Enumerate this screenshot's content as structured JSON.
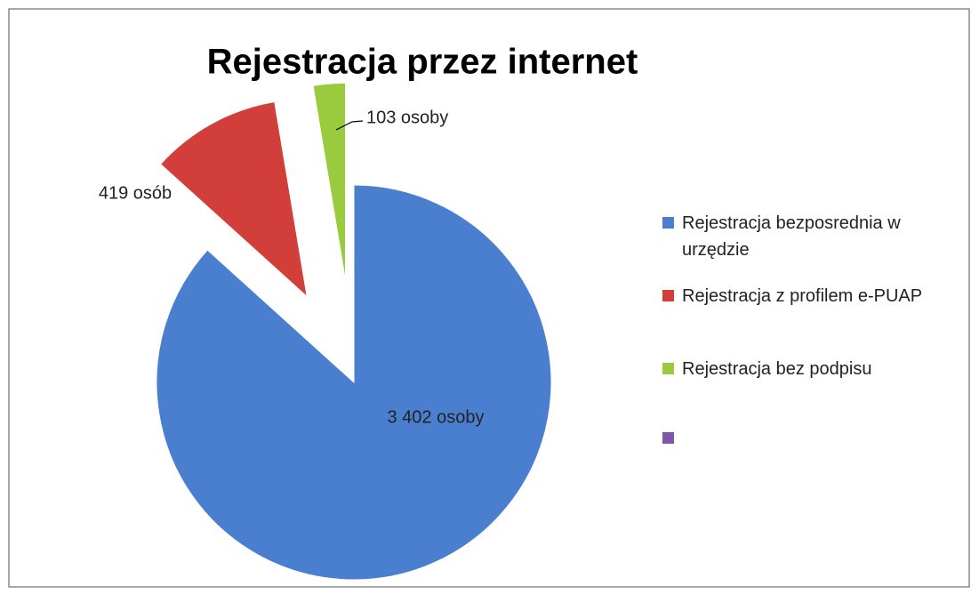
{
  "chart_data": {
    "type": "pie",
    "title": "Rejestracja przez internet",
    "categories": [
      "Rejestracja bezposrednia w urzędzie",
      "Rejestracja z profilem e-PUAP",
      "Rejestracja bez podpisu",
      null
    ],
    "values": [
      3402,
      419,
      103,
      null
    ],
    "value_labels": [
      "3 402 osoby",
      "419 osób",
      "103 osoby",
      null
    ],
    "colors": [
      "#4a7fd0",
      "#d23f3b",
      "#9acb3e",
      "#7f57aa"
    ],
    "legend": "right"
  }
}
